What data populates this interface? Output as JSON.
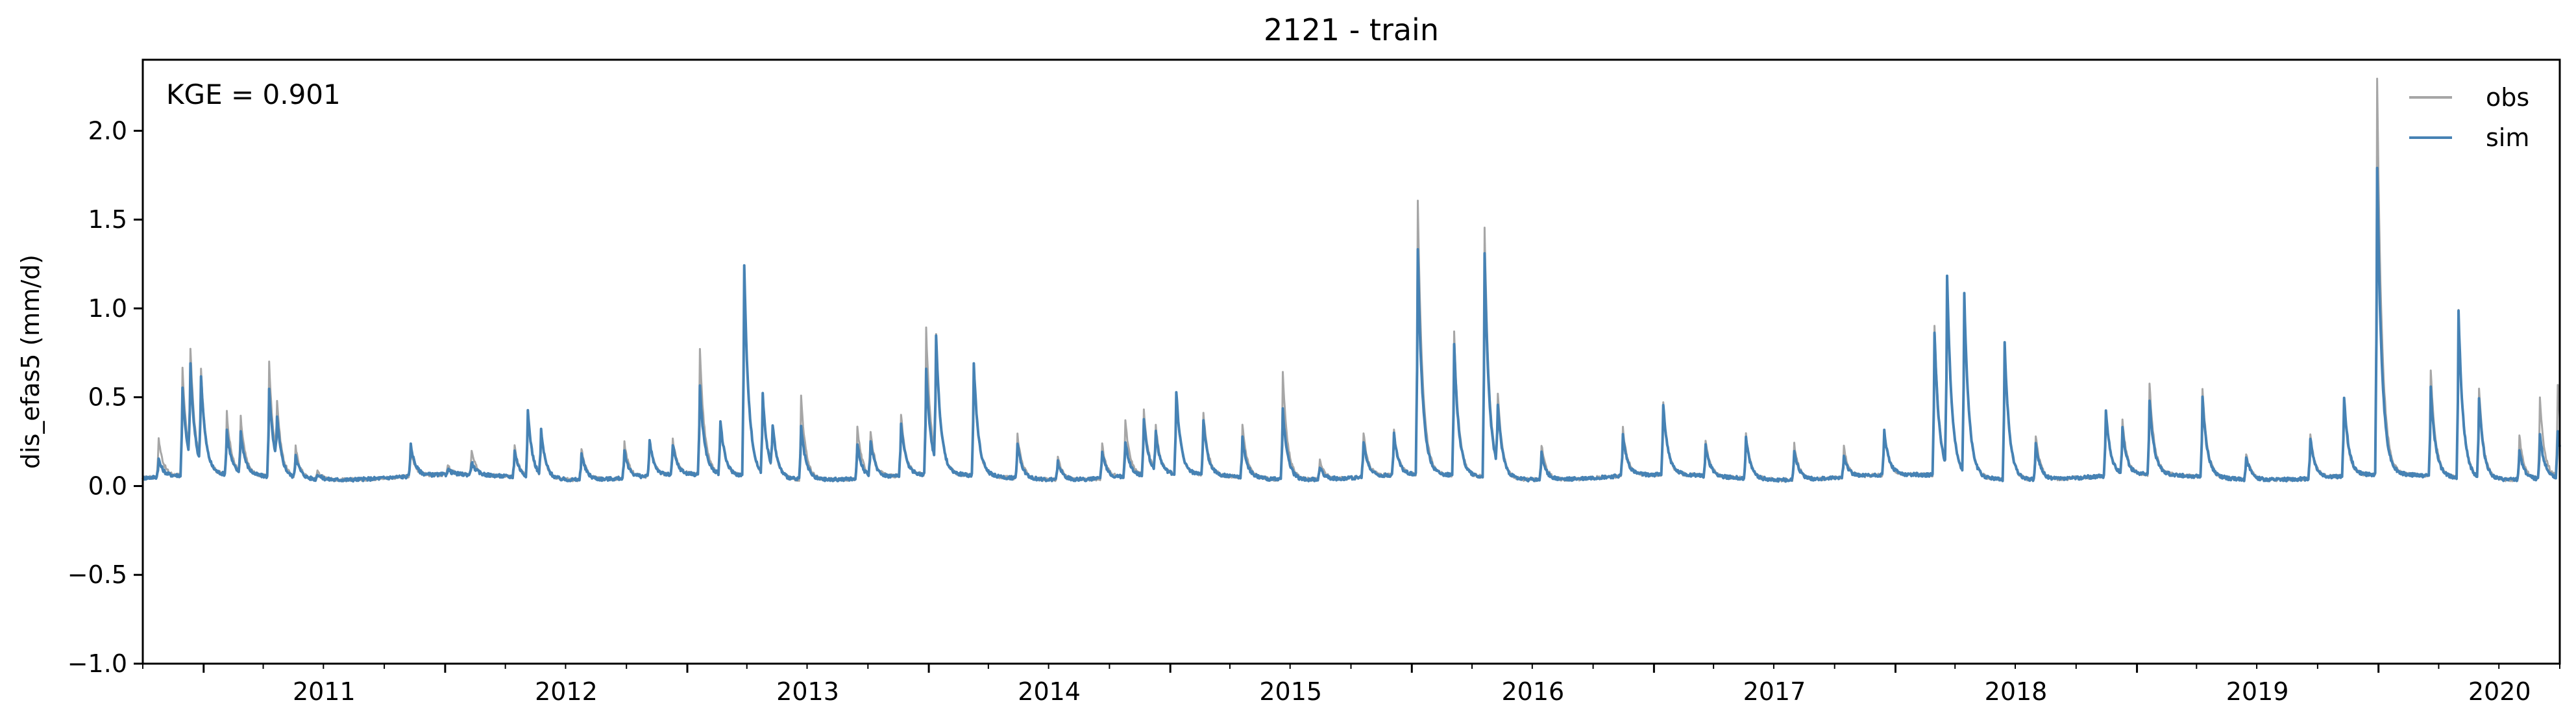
{
  "chart_data": {
    "type": "line",
    "title": "2121 - train",
    "ylabel": "dis_efas5 (mm/d)",
    "xlabel": "",
    "xlim": [
      "2010-10-01",
      "2020-10-01"
    ],
    "ylim": [
      -1.0,
      2.4
    ],
    "y_ticks": [
      "−1.0",
      "−0.5",
      "0.0",
      "0.5",
      "1.0",
      "1.5",
      "2.0"
    ],
    "x_ticks": [
      "2011",
      "2012",
      "2013",
      "2014",
      "2015",
      "2016",
      "2017",
      "2018",
      "2019",
      "2020"
    ],
    "grid": false,
    "legend_position": "top-right",
    "annotation": "KGE = 0.901",
    "base_value": 0.05,
    "series": [
      {
        "name": "obs",
        "color": "#a6a6a6",
        "peaks": [
          [
            "2010-10-25",
            0.27
          ],
          [
            "2010-11-30",
            0.66
          ],
          [
            "2010-12-12",
            0.66
          ],
          [
            "2010-12-28",
            0.58
          ],
          [
            "2011-02-05",
            0.4
          ],
          [
            "2011-02-26",
            0.36
          ],
          [
            "2011-04-10",
            0.69
          ],
          [
            "2011-04-22",
            0.37
          ],
          [
            "2011-05-20",
            0.22
          ],
          [
            "2011-06-22",
            0.1
          ],
          [
            "2011-11-10",
            0.2
          ],
          [
            "2012-01-05",
            0.1
          ],
          [
            "2012-02-10",
            0.18
          ],
          [
            "2012-04-15",
            0.22
          ],
          [
            "2012-05-05",
            0.4
          ],
          [
            "2012-05-25",
            0.3
          ],
          [
            "2012-07-25",
            0.23
          ],
          [
            "2012-09-28",
            0.25
          ],
          [
            "2012-11-05",
            0.26
          ],
          [
            "2012-12-10",
            0.25
          ],
          [
            "2013-01-20",
            0.75
          ],
          [
            "2013-02-20",
            0.35
          ],
          [
            "2013-03-28",
            1.2
          ],
          [
            "2013-04-25",
            0.5
          ],
          [
            "2013-05-10",
            0.3
          ],
          [
            "2013-06-22",
            0.52
          ],
          [
            "2013-09-15",
            0.35
          ],
          [
            "2013-10-05",
            0.3
          ],
          [
            "2013-11-20",
            0.4
          ],
          [
            "2013-12-28",
            0.87
          ],
          [
            "2014-01-12",
            0.75
          ],
          [
            "2014-03-10",
            0.65
          ],
          [
            "2014-05-15",
            0.3
          ],
          [
            "2014-07-15",
            0.18
          ],
          [
            "2014-09-20",
            0.24
          ],
          [
            "2014-10-25",
            0.37
          ],
          [
            "2014-11-22",
            0.42
          ],
          [
            "2014-12-10",
            0.3
          ],
          [
            "2015-01-10",
            0.5
          ],
          [
            "2015-02-20",
            0.4
          ],
          [
            "2015-04-20",
            0.35
          ],
          [
            "2015-06-20",
            0.66
          ],
          [
            "2015-08-15",
            0.16
          ],
          [
            "2015-10-20",
            0.3
          ],
          [
            "2015-12-05",
            0.3
          ],
          [
            "2016-01-10",
            1.6
          ],
          [
            "2016-03-05",
            0.85
          ],
          [
            "2016-04-20",
            1.45
          ],
          [
            "2016-05-10",
            0.45
          ],
          [
            "2016-07-15",
            0.25
          ],
          [
            "2016-11-15",
            0.32
          ],
          [
            "2017-01-15",
            0.46
          ],
          [
            "2017-03-20",
            0.25
          ],
          [
            "2017-05-20",
            0.3
          ],
          [
            "2017-08-01",
            0.25
          ],
          [
            "2017-10-15",
            0.22
          ],
          [
            "2017-12-15",
            0.3
          ],
          [
            "2018-03-01",
            0.9
          ],
          [
            "2018-03-20",
            1.1
          ],
          [
            "2018-04-15",
            1.05
          ],
          [
            "2018-06-15",
            0.8
          ],
          [
            "2018-08-01",
            0.3
          ],
          [
            "2018-11-15",
            0.42
          ],
          [
            "2018-12-10",
            0.35
          ],
          [
            "2019-01-20",
            0.56
          ],
          [
            "2019-04-10",
            0.55
          ],
          [
            "2019-06-15",
            0.2
          ],
          [
            "2019-09-20",
            0.3
          ],
          [
            "2019-11-10",
            0.45
          ],
          [
            "2019-12-30",
            2.28
          ],
          [
            "2020-03-20",
            0.65
          ],
          [
            "2020-05-01",
            1.0
          ],
          [
            "2020-06-01",
            0.55
          ],
          [
            "2020-08-01",
            0.3
          ],
          [
            "2020-09-01",
            0.5
          ],
          [
            "2020-09-28",
            0.57
          ]
        ]
      },
      {
        "name": "sim",
        "color": "#4682b4",
        "peaks": [
          [
            "2010-10-25",
            0.15
          ],
          [
            "2010-11-30",
            0.55
          ],
          [
            "2010-12-12",
            0.58
          ],
          [
            "2010-12-28",
            0.55
          ],
          [
            "2011-02-05",
            0.3
          ],
          [
            "2011-02-26",
            0.28
          ],
          [
            "2011-04-10",
            0.55
          ],
          [
            "2011-04-22",
            0.3
          ],
          [
            "2011-05-20",
            0.18
          ],
          [
            "2011-06-22",
            0.08
          ],
          [
            "2011-11-10",
            0.23
          ],
          [
            "2012-01-05",
            0.08
          ],
          [
            "2012-02-10",
            0.12
          ],
          [
            "2012-04-15",
            0.2
          ],
          [
            "2012-05-05",
            0.42
          ],
          [
            "2012-05-25",
            0.3
          ],
          [
            "2012-07-25",
            0.2
          ],
          [
            "2012-09-28",
            0.2
          ],
          [
            "2012-11-05",
            0.25
          ],
          [
            "2012-12-10",
            0.22
          ],
          [
            "2013-01-20",
            0.55
          ],
          [
            "2013-02-20",
            0.35
          ],
          [
            "2013-03-28",
            1.23
          ],
          [
            "2013-04-25",
            0.5
          ],
          [
            "2013-05-10",
            0.3
          ],
          [
            "2013-06-22",
            0.35
          ],
          [
            "2013-09-15",
            0.25
          ],
          [
            "2013-10-05",
            0.25
          ],
          [
            "2013-11-20",
            0.35
          ],
          [
            "2013-12-28",
            0.65
          ],
          [
            "2014-01-12",
            0.77
          ],
          [
            "2014-03-10",
            0.68
          ],
          [
            "2014-05-15",
            0.25
          ],
          [
            "2014-07-15",
            0.15
          ],
          [
            "2014-09-20",
            0.2
          ],
          [
            "2014-10-25",
            0.25
          ],
          [
            "2014-11-22",
            0.37
          ],
          [
            "2014-12-10",
            0.27
          ],
          [
            "2015-01-10",
            0.52
          ],
          [
            "2015-02-20",
            0.35
          ],
          [
            "2015-04-20",
            0.27
          ],
          [
            "2015-06-20",
            0.45
          ],
          [
            "2015-08-15",
            0.12
          ],
          [
            "2015-10-20",
            0.25
          ],
          [
            "2015-12-05",
            0.28
          ],
          [
            "2016-01-10",
            1.32
          ],
          [
            "2016-03-05",
            0.78
          ],
          [
            "2016-04-20",
            1.3
          ],
          [
            "2016-05-10",
            0.4
          ],
          [
            "2016-07-15",
            0.2
          ],
          [
            "2016-11-15",
            0.28
          ],
          [
            "2017-01-15",
            0.45
          ],
          [
            "2017-03-20",
            0.22
          ],
          [
            "2017-05-20",
            0.28
          ],
          [
            "2017-08-01",
            0.22
          ],
          [
            "2017-10-15",
            0.18
          ],
          [
            "2017-12-15",
            0.3
          ],
          [
            "2018-03-01",
            0.85
          ],
          [
            "2018-03-20",
            1.13
          ],
          [
            "2018-04-15",
            1.05
          ],
          [
            "2018-06-15",
            0.82
          ],
          [
            "2018-08-01",
            0.25
          ],
          [
            "2018-11-15",
            0.42
          ],
          [
            "2018-12-10",
            0.3
          ],
          [
            "2019-01-20",
            0.47
          ],
          [
            "2019-04-10",
            0.5
          ],
          [
            "2019-06-15",
            0.18
          ],
          [
            "2019-09-20",
            0.28
          ],
          [
            "2019-11-10",
            0.5
          ],
          [
            "2019-12-30",
            1.78
          ],
          [
            "2020-03-20",
            0.55
          ],
          [
            "2020-05-01",
            0.98
          ],
          [
            "2020-06-01",
            0.5
          ],
          [
            "2020-08-01",
            0.22
          ],
          [
            "2020-09-01",
            0.3
          ],
          [
            "2020-09-28",
            0.3
          ]
        ]
      }
    ]
  }
}
